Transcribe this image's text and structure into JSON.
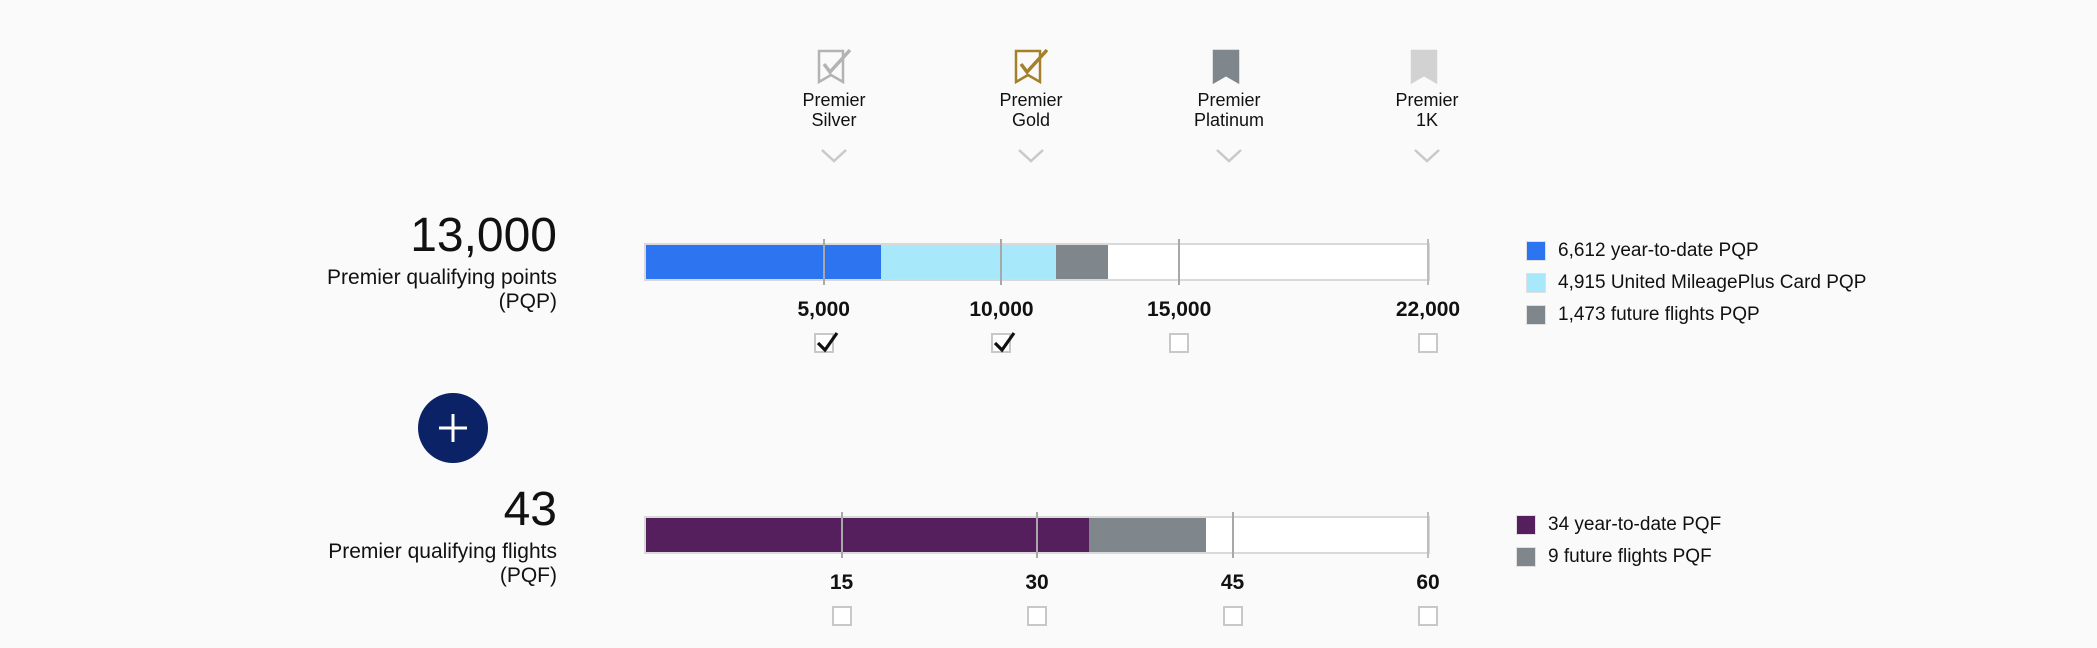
{
  "tiers": [
    {
      "line1": "Premier",
      "line2": "Silver",
      "icon": "check-flag-icon",
      "color": "#b3b3b3"
    },
    {
      "line1": "Premier",
      "line2": "Gold",
      "icon": "check-flag-icon",
      "color": "#a5802b"
    },
    {
      "line1": "Premier",
      "line2": "Platinum",
      "icon": "flag-icon",
      "color": "#7f868c"
    },
    {
      "line1": "Premier",
      "line2": "1K",
      "icon": "flag-icon",
      "color": "#d2d2d2"
    }
  ],
  "pqp": {
    "total": "13,000",
    "label_line1": "Premier qualifying points",
    "label_line2": "(PQP)",
    "max": 22000,
    "segments": [
      {
        "value": 6612,
        "color": "#2d74f1"
      },
      {
        "value": 4915,
        "color": "#a7e8fb"
      },
      {
        "value": 1473,
        "color": "#7f878d"
      }
    ],
    "thresholds": [
      {
        "value": 5000,
        "label": "5,000",
        "checked": true
      },
      {
        "value": 10000,
        "label": "10,000",
        "checked": true
      },
      {
        "value": 15000,
        "label": "15,000",
        "checked": false
      },
      {
        "value": 22000,
        "label": "22,000",
        "checked": false
      }
    ],
    "legend": [
      {
        "text": "6,612 year-to-date PQP",
        "color": "#2d74f1"
      },
      {
        "text": "4,915 United MileagePlus Card PQP",
        "color": "#a7e8fb"
      },
      {
        "text": "1,473 future flights PQP",
        "color": "#7f878d"
      }
    ]
  },
  "pqf": {
    "total": "43",
    "label_line1": "Premier qualifying flights",
    "label_line2": "(PQF)",
    "max": 60,
    "segments": [
      {
        "value": 34,
        "color": "#541f5c"
      },
      {
        "value": 9,
        "color": "#7f878d"
      }
    ],
    "thresholds": [
      {
        "value": 15,
        "label": "15",
        "checked": false
      },
      {
        "value": 30,
        "label": "30",
        "checked": false
      },
      {
        "value": 45,
        "label": "45",
        "checked": false
      },
      {
        "value": 60,
        "label": "60",
        "checked": false
      }
    ],
    "legend": [
      {
        "text": "34 year-to-date PQF",
        "color": "#541f5c"
      },
      {
        "text": "9 future flights PQF",
        "color": "#7f878d"
      }
    ]
  },
  "plus_icon": "plus-icon",
  "plus_color": "#0c2267"
}
